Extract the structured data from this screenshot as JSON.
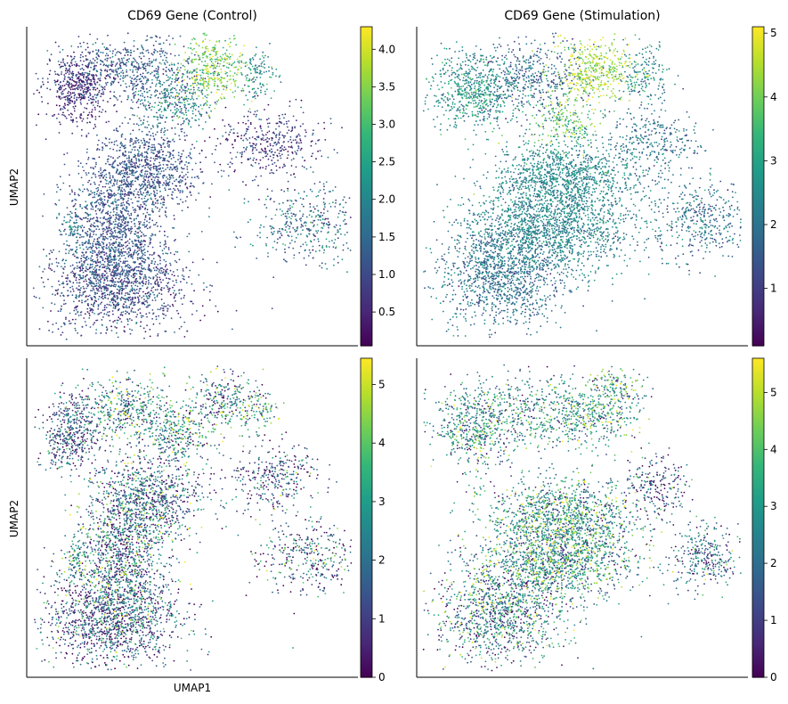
{
  "chart_data": [
    {
      "type": "scatter",
      "title": "CD69 Gene (Control)",
      "xlabel": "",
      "ylabel": "UMAP2",
      "colorbar": {
        "range": [
          0.05,
          4.3
        ],
        "ticks": [
          0.5,
          1.0,
          1.5,
          2.0,
          2.5,
          3.0,
          3.5,
          4.0
        ],
        "tick_labels": [
          "0.5",
          "1.0",
          "1.5",
          "2.0",
          "2.5",
          "3.0",
          "3.5",
          "4.0"
        ],
        "colormap": "viridis"
      },
      "grid": false,
      "clusters": [
        {
          "cx": 0.15,
          "cy": 0.81,
          "sx": 0.05,
          "sy": 0.06,
          "n": 480,
          "value": 0.55,
          "spread": 0.4
        },
        {
          "cx": 0.32,
          "cy": 0.86,
          "sx": 0.1,
          "sy": 0.05,
          "n": 560,
          "value": 1.25,
          "spread": 0.5
        },
        {
          "cx": 0.45,
          "cy": 0.77,
          "sx": 0.06,
          "sy": 0.05,
          "n": 320,
          "value": 1.9,
          "spread": 0.6
        },
        {
          "cx": 0.56,
          "cy": 0.87,
          "sx": 0.05,
          "sy": 0.05,
          "n": 360,
          "value": 3.4,
          "spread": 0.6
        },
        {
          "cx": 0.69,
          "cy": 0.85,
          "sx": 0.03,
          "sy": 0.04,
          "n": 120,
          "value": 2.1,
          "spread": 0.5
        },
        {
          "cx": 0.73,
          "cy": 0.63,
          "sx": 0.08,
          "sy": 0.06,
          "n": 380,
          "value": 0.75,
          "spread": 0.5
        },
        {
          "cx": 0.85,
          "cy": 0.38,
          "sx": 0.08,
          "sy": 0.06,
          "n": 380,
          "value": 1.6,
          "spread": 0.7
        },
        {
          "cx": 0.36,
          "cy": 0.55,
          "sx": 0.08,
          "sy": 0.07,
          "n": 900,
          "value": 1.1,
          "spread": 0.4
        },
        {
          "cx": 0.26,
          "cy": 0.37,
          "sx": 0.07,
          "sy": 0.1,
          "n": 1000,
          "value": 1.15,
          "spread": 0.4
        },
        {
          "cx": 0.27,
          "cy": 0.19,
          "sx": 0.11,
          "sy": 0.08,
          "n": 1300,
          "value": 1.0,
          "spread": 0.5
        },
        {
          "cx": 0.14,
          "cy": 0.37,
          "sx": 0.02,
          "sy": 0.03,
          "n": 60,
          "value": 1.9,
          "spread": 0.4
        }
      ]
    },
    {
      "type": "scatter",
      "title": "CD69 Gene (Stimulation)",
      "xlabel": "",
      "ylabel": "",
      "colorbar": {
        "range": [
          0.1,
          5.1
        ],
        "ticks": [
          1,
          2,
          3,
          4,
          5
        ],
        "tick_labels": [
          "1",
          "2",
          "3",
          "4",
          "5"
        ],
        "colormap": "viridis"
      },
      "grid": false,
      "clusters": [
        {
          "cx": 0.17,
          "cy": 0.8,
          "sx": 0.07,
          "sy": 0.06,
          "n": 560,
          "value": 2.6,
          "spread": 0.6
        },
        {
          "cx": 0.33,
          "cy": 0.84,
          "sx": 0.1,
          "sy": 0.06,
          "n": 520,
          "value": 1.7,
          "spread": 0.6
        },
        {
          "cx": 0.53,
          "cy": 0.86,
          "sx": 0.06,
          "sy": 0.05,
          "n": 420,
          "value": 4.4,
          "spread": 0.5
        },
        {
          "cx": 0.45,
          "cy": 0.7,
          "sx": 0.05,
          "sy": 0.04,
          "n": 200,
          "value": 3.6,
          "spread": 0.7
        },
        {
          "cx": 0.68,
          "cy": 0.85,
          "sx": 0.04,
          "sy": 0.05,
          "n": 180,
          "value": 2.5,
          "spread": 0.6
        },
        {
          "cx": 0.72,
          "cy": 0.64,
          "sx": 0.07,
          "sy": 0.05,
          "n": 300,
          "value": 1.9,
          "spread": 0.6
        },
        {
          "cx": 0.85,
          "cy": 0.4,
          "sx": 0.08,
          "sy": 0.06,
          "n": 420,
          "value": 1.9,
          "spread": 0.6
        },
        {
          "cx": 0.44,
          "cy": 0.52,
          "sx": 0.11,
          "sy": 0.06,
          "n": 1200,
          "value": 2.4,
          "spread": 0.5
        },
        {
          "cx": 0.4,
          "cy": 0.36,
          "sx": 0.13,
          "sy": 0.06,
          "n": 1300,
          "value": 2.3,
          "spread": 0.5
        },
        {
          "cx": 0.26,
          "cy": 0.22,
          "sx": 0.1,
          "sy": 0.08,
          "n": 1200,
          "value": 1.9,
          "spread": 0.5
        }
      ]
    },
    {
      "type": "scatter",
      "title": "",
      "xlabel": "UMAP1",
      "ylabel": "UMAP2",
      "colorbar": {
        "range": [
          0,
          5.45
        ],
        "ticks": [
          0,
          1,
          2,
          3,
          4,
          5
        ],
        "tick_labels": [
          "0",
          "1",
          "2",
          "3",
          "4",
          "5"
        ],
        "colormap": "viridis"
      },
      "grid": false,
      "clusters": [
        {
          "cx": 0.13,
          "cy": 0.76,
          "sx": 0.04,
          "sy": 0.06,
          "n": 420,
          "value": 1.2,
          "spread": 1.3
        },
        {
          "cx": 0.29,
          "cy": 0.84,
          "sx": 0.08,
          "sy": 0.05,
          "n": 460,
          "value": 2.3,
          "spread": 1.5
        },
        {
          "cx": 0.45,
          "cy": 0.76,
          "sx": 0.06,
          "sy": 0.05,
          "n": 340,
          "value": 2.6,
          "spread": 1.5
        },
        {
          "cx": 0.6,
          "cy": 0.87,
          "sx": 0.05,
          "sy": 0.05,
          "n": 260,
          "value": 2.4,
          "spread": 1.5
        },
        {
          "cx": 0.7,
          "cy": 0.84,
          "sx": 0.03,
          "sy": 0.04,
          "n": 100,
          "value": 2.6,
          "spread": 1.5
        },
        {
          "cx": 0.74,
          "cy": 0.63,
          "sx": 0.07,
          "sy": 0.05,
          "n": 320,
          "value": 1.2,
          "spread": 1.4
        },
        {
          "cx": 0.85,
          "cy": 0.38,
          "sx": 0.08,
          "sy": 0.06,
          "n": 360,
          "value": 1.6,
          "spread": 1.5
        },
        {
          "cx": 0.37,
          "cy": 0.56,
          "sx": 0.08,
          "sy": 0.07,
          "n": 900,
          "value": 1.7,
          "spread": 1.6
        },
        {
          "cx": 0.28,
          "cy": 0.37,
          "sx": 0.07,
          "sy": 0.1,
          "n": 1000,
          "value": 1.8,
          "spread": 1.6
        },
        {
          "cx": 0.26,
          "cy": 0.18,
          "sx": 0.1,
          "sy": 0.08,
          "n": 1300,
          "value": 1.4,
          "spread": 1.5
        },
        {
          "cx": 0.15,
          "cy": 0.37,
          "sx": 0.02,
          "sy": 0.03,
          "n": 60,
          "value": 3.0,
          "spread": 1.0
        }
      ]
    },
    {
      "type": "scatter",
      "title": "",
      "xlabel": "",
      "ylabel": "",
      "colorbar": {
        "range": [
          0,
          5.6
        ],
        "ticks": [
          0,
          1,
          2,
          3,
          4,
          5
        ],
        "tick_labels": [
          "0",
          "1",
          "2",
          "3",
          "4",
          "5"
        ],
        "colormap": "viridis"
      },
      "grid": false,
      "clusters": [
        {
          "cx": 0.17,
          "cy": 0.78,
          "sx": 0.06,
          "sy": 0.06,
          "n": 460,
          "value": 2.5,
          "spread": 1.4
        },
        {
          "cx": 0.33,
          "cy": 0.83,
          "sx": 0.1,
          "sy": 0.06,
          "n": 460,
          "value": 2.6,
          "spread": 1.4
        },
        {
          "cx": 0.51,
          "cy": 0.82,
          "sx": 0.06,
          "sy": 0.05,
          "n": 320,
          "value": 3.0,
          "spread": 1.4
        },
        {
          "cx": 0.61,
          "cy": 0.88,
          "sx": 0.04,
          "sy": 0.05,
          "n": 200,
          "value": 2.9,
          "spread": 1.4
        },
        {
          "cx": 0.72,
          "cy": 0.6,
          "sx": 0.05,
          "sy": 0.05,
          "n": 220,
          "value": 1.4,
          "spread": 1.4
        },
        {
          "cx": 0.87,
          "cy": 0.38,
          "sx": 0.05,
          "sy": 0.05,
          "n": 300,
          "value": 1.8,
          "spread": 1.3
        },
        {
          "cx": 0.44,
          "cy": 0.5,
          "sx": 0.11,
          "sy": 0.06,
          "n": 1200,
          "value": 2.7,
          "spread": 1.5
        },
        {
          "cx": 0.42,
          "cy": 0.36,
          "sx": 0.12,
          "sy": 0.06,
          "n": 1200,
          "value": 2.7,
          "spread": 1.5
        },
        {
          "cx": 0.25,
          "cy": 0.2,
          "sx": 0.1,
          "sy": 0.08,
          "n": 1100,
          "value": 2.2,
          "spread": 1.5
        }
      ]
    }
  ]
}
